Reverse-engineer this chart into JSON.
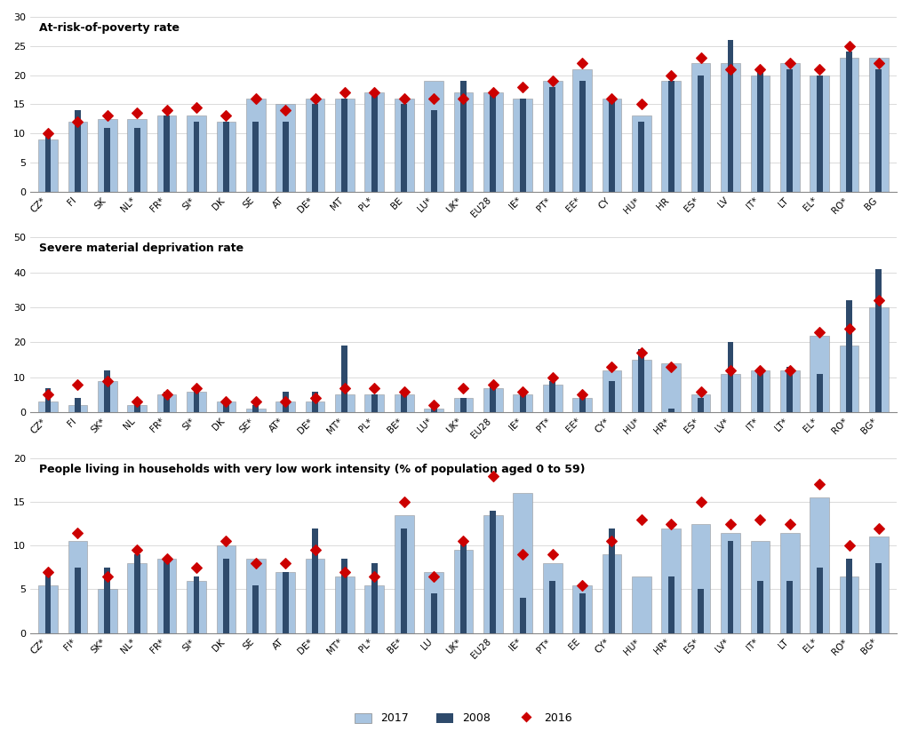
{
  "chart1": {
    "title": "At-risk-of-poverty rate",
    "ylim": [
      0,
      30
    ],
    "yticks": [
      0,
      5,
      10,
      15,
      20,
      25,
      30
    ],
    "categories": [
      "CZ*",
      "FI",
      "SK",
      "NL*",
      "FR*",
      "SI*",
      "DK",
      "SE",
      "AT",
      "DE*",
      "MT",
      "PL*",
      "BE",
      "LU*",
      "UK*",
      "EU28",
      "IE*",
      "PT*",
      "EE*",
      "CY",
      "HU*",
      "HR",
      "ES*",
      "LV",
      "IT*",
      "LT",
      "EL*",
      "RO*",
      "BG"
    ],
    "bar2017": [
      9,
      12,
      12.5,
      12.5,
      13,
      13,
      12,
      16,
      15,
      16,
      16,
      17,
      16,
      19,
      17,
      17,
      16,
      19,
      21,
      16,
      13,
      19,
      22,
      22,
      20,
      22,
      20,
      23,
      23
    ],
    "bar2008": [
      10,
      14,
      11,
      11,
      13,
      12,
      12,
      12,
      12,
      15,
      16,
      17,
      15,
      14,
      19,
      17,
      16,
      18,
      19,
      16,
      12,
      19,
      20,
      26,
      21,
      21,
      20,
      24,
      21
    ],
    "dot2016": [
      10,
      12,
      13,
      13.5,
      14,
      14.5,
      13,
      16,
      14,
      16,
      17,
      17,
      16,
      16,
      16,
      17,
      18,
      19,
      22,
      16,
      15,
      20,
      23,
      21,
      21,
      22,
      21,
      25,
      22
    ]
  },
  "chart2": {
    "title": "Severe material deprivation rate",
    "ylim": [
      0,
      50
    ],
    "yticks": [
      0,
      10,
      20,
      30,
      40,
      50
    ],
    "categories": [
      "CZ*",
      "FI",
      "SK*",
      "NL",
      "FR*",
      "SI*",
      "DK",
      "SE*",
      "AT*",
      "DE*",
      "MT*",
      "PL*",
      "BE*",
      "LU*",
      "UK*",
      "EU28",
      "IE*",
      "PT*",
      "EE*",
      "CY*",
      "HU*",
      "HR*",
      "ES*",
      "LV*",
      "IT*",
      "LT*",
      "EL*",
      "RO*",
      "BG*"
    ],
    "bar2017": [
      3,
      2,
      9,
      2,
      5,
      6,
      3,
      1,
      3,
      3,
      5,
      5,
      5,
      1,
      4,
      7,
      5,
      8,
      4,
      12,
      15,
      14,
      5,
      11,
      12,
      12,
      22,
      19,
      30
    ],
    "bar2008": [
      7,
      4,
      12,
      2,
      6,
      7,
      3,
      2,
      6,
      6,
      19,
      5,
      6,
      1,
      4,
      8,
      6,
      9,
      5,
      9,
      18,
      1,
      4,
      20,
      11,
      13,
      11,
      32,
      41
    ],
    "dot2016": [
      5,
      8,
      9,
      3,
      5,
      7,
      3,
      3,
      3,
      4,
      7,
      7,
      6,
      2,
      7,
      8,
      6,
      10,
      5,
      13,
      17,
      13,
      6,
      12,
      12,
      12,
      23,
      24,
      32
    ]
  },
  "chart3": {
    "title": "People living in households with very low work intensity (% of population aged 0 to 59)",
    "ylim": [
      0,
      20
    ],
    "yticks": [
      0,
      5,
      10,
      15,
      20
    ],
    "categories": [
      "CZ*",
      "FI*",
      "SK*",
      "NL*",
      "FR*",
      "SI*",
      "DK",
      "SE",
      "AT",
      "DE*",
      "MT*",
      "PL*",
      "BE*",
      "LU",
      "UK*",
      "EU28",
      "IE*",
      "PT*",
      "EE",
      "CY*",
      "HU*",
      "HR*",
      "ES*",
      "LV*",
      "IT*",
      "LT",
      "EL*",
      "RO*",
      "BG*"
    ],
    "bar2017": [
      5.5,
      10.5,
      5.0,
      8.0,
      8.5,
      6.0,
      10.0,
      8.5,
      7.0,
      8.5,
      6.5,
      5.5,
      13.5,
      7.0,
      9.5,
      13.5,
      16.0,
      8.0,
      5.5,
      9.0,
      6.5,
      12.0,
      12.5,
      11.5,
      10.5,
      11.5,
      15.5,
      6.5,
      11.0
    ],
    "bar2008": [
      7.0,
      7.5,
      7.5,
      9.0,
      8.5,
      6.5,
      8.5,
      5.5,
      7.0,
      12.0,
      8.5,
      8.0,
      12.0,
      4.5,
      10.5,
      14.0,
      4.0,
      6.0,
      4.5,
      12.0,
      0.0,
      6.5,
      5.0,
      10.5,
      6.0,
      6.0,
      7.5,
      8.5,
      8.0
    ],
    "dot2016": [
      7.0,
      11.5,
      6.5,
      9.5,
      8.5,
      7.5,
      10.5,
      8.0,
      8.0,
      9.5,
      7.0,
      6.5,
      15.0,
      6.5,
      10.5,
      18.0,
      9.0,
      9.0,
      5.5,
      10.5,
      13.0,
      12.5,
      15.0,
      12.5,
      13.0,
      12.5,
      17.0,
      10.0,
      12.0
    ]
  },
  "colors": {
    "bar2017": "#a8c4e0",
    "bar2008": "#2e4a6b",
    "dot2016": "#cc0000"
  }
}
